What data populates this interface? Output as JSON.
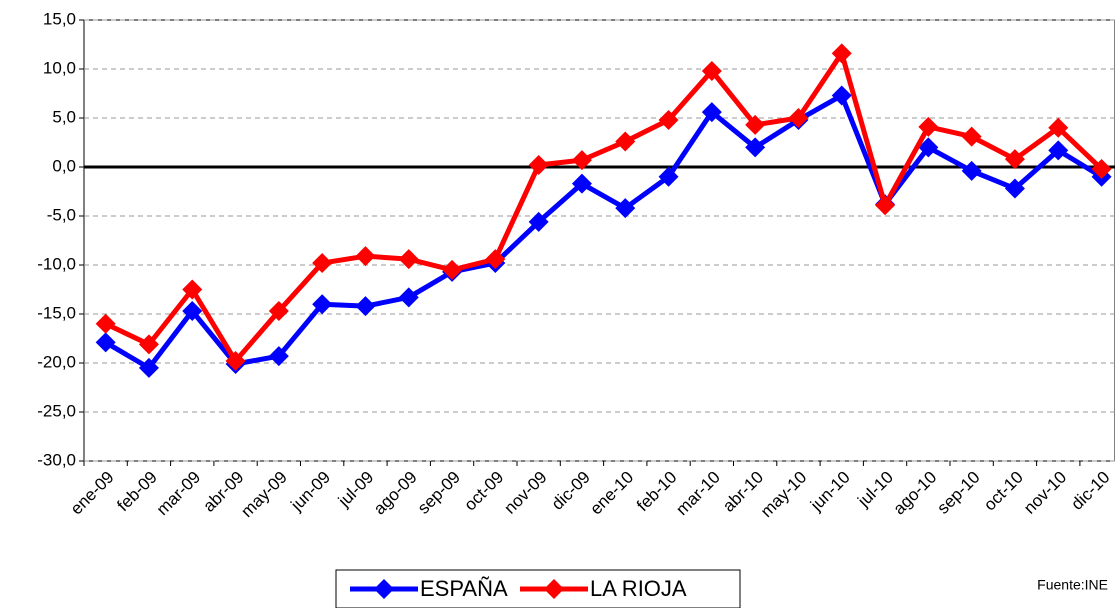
{
  "chart_data": {
    "type": "line",
    "categories": [
      "ene-09",
      "feb-09",
      "mar-09",
      "abr-09",
      "may-09",
      "jun-09",
      "jul-09",
      "ago-09",
      "sep-09",
      "oct-09",
      "nov-09",
      "dic-09",
      "ene-10",
      "feb-10",
      "mar-10",
      "abr-10",
      "may-10",
      "jun-10",
      "jul-10",
      "ago-10",
      "sep-10",
      "oct-10",
      "nov-10",
      "dic-10"
    ],
    "series": [
      {
        "name": "ESPAÑA",
        "color": "#0000ff",
        "values": [
          -17.9,
          -20.5,
          -14.7,
          -20.1,
          -19.3,
          -14.0,
          -14.2,
          -13.3,
          -10.7,
          -9.8,
          -5.6,
          -1.7,
          -4.2,
          -1.0,
          5.6,
          2.0,
          4.8,
          7.3,
          -3.8,
          2.0,
          -0.4,
          -2.2,
          1.7,
          -1.0
        ]
      },
      {
        "name": "LA RIOJA",
        "color": "#ff0000",
        "values": [
          -16.0,
          -18.1,
          -12.5,
          -19.8,
          -14.7,
          -9.8,
          -9.1,
          -9.4,
          -10.5,
          -9.4,
          0.2,
          0.7,
          2.6,
          4.8,
          9.8,
          4.3,
          5.0,
          11.6,
          -3.9,
          4.1,
          3.1,
          0.8,
          4.0,
          -0.2
        ]
      }
    ],
    "ylim": [
      -30,
      15
    ],
    "yticks": [
      {
        "value": -30,
        "label": "-30,0"
      },
      {
        "value": -25,
        "label": "-25,0"
      },
      {
        "value": -20,
        "label": "-20,0"
      },
      {
        "value": -15,
        "label": "-15,0"
      },
      {
        "value": -10,
        "label": "-10,0"
      },
      {
        "value": -5,
        "label": "-5,0"
      },
      {
        "value": 0,
        "label": "0,0"
      },
      {
        "value": 5,
        "label": "5,0"
      },
      {
        "value": 10,
        "label": "10,0"
      },
      {
        "value": 15,
        "label": "15,0"
      }
    ],
    "grid": true,
    "legend": "bottom",
    "source": "Fuente:INE"
  }
}
